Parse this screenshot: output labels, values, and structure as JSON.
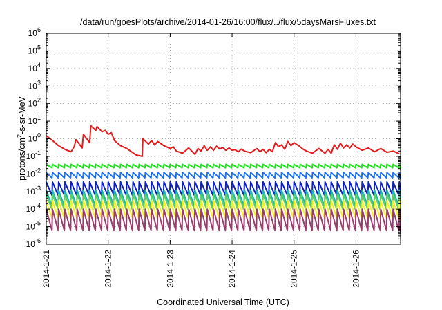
{
  "chart_data": {
    "type": "line",
    "title": "/data/run/goesPlots/archive/2014-01-26/16:00/flux/../flux/5daysMarsFluxes.txt",
    "xlabel": "Coordinated Universal Time (UTC)",
    "ylabel_parts": {
      "base": "protons/cm",
      "sup": "2",
      "rest": "-s-sr-MeV"
    },
    "yscale": "log",
    "ylim": [
      1e-06,
      1000000.0
    ],
    "xlim": [
      0,
      5.72
    ],
    "grid": true,
    "legend": "none",
    "x_tick_values": [
      0,
      1,
      2,
      3,
      4,
      5
    ],
    "x_tick_labels": [
      "2014-1-21",
      "2014-1-22",
      "2014-1-23",
      "2014-1-24",
      "2014-1-25",
      "2014-1-26"
    ],
    "y_ticks": [
      {
        "exp": -6,
        "base": "10",
        "sup": "-6"
      },
      {
        "exp": -5,
        "base": "10",
        "sup": "-5"
      },
      {
        "exp": -4,
        "base": "10",
        "sup": "-4"
      },
      {
        "exp": -3,
        "base": "10",
        "sup": "-3"
      },
      {
        "exp": -2,
        "base": "10",
        "sup": "-2"
      },
      {
        "exp": -1,
        "base": "10",
        "sup": "-1"
      },
      {
        "exp": 0,
        "base": "10",
        "sup": "0"
      },
      {
        "exp": 1,
        "base": "10",
        "sup": "1"
      },
      {
        "exp": 2,
        "base": "10",
        "sup": "2"
      },
      {
        "exp": 3,
        "base": "10",
        "sup": "3"
      },
      {
        "exp": 4,
        "base": "10",
        "sup": "4"
      },
      {
        "exp": 5,
        "base": "10",
        "sup": "5"
      },
      {
        "exp": 6,
        "base": "10",
        "sup": "6"
      }
    ],
    "series": [
      {
        "color": "#e41a1c",
        "x": [
          0,
          0.1,
          0.2,
          0.3,
          0.4,
          0.45,
          0.48,
          0.58,
          0.6,
          0.7,
          0.72,
          0.8,
          0.82,
          0.9,
          0.95,
          1.0,
          1.05,
          1.1,
          1.2,
          1.3,
          1.45,
          1.55,
          1.56,
          1.65,
          1.7,
          1.75,
          1.8,
          1.9,
          2.0,
          2.05,
          2.1,
          2.2,
          2.3,
          2.4,
          2.45,
          2.5,
          2.55,
          2.6,
          2.65,
          2.7,
          2.75,
          2.8,
          2.85,
          2.9,
          2.95,
          3.0,
          3.05,
          3.1,
          3.15,
          3.2,
          3.3,
          3.4,
          3.45,
          3.5,
          3.55,
          3.6,
          3.65,
          3.7,
          3.75,
          3.8,
          3.85,
          3.9,
          3.95,
          4.0,
          4.1,
          4.15,
          4.2,
          4.3,
          4.4,
          4.5,
          4.55,
          4.6,
          4.65,
          4.7,
          4.75,
          4.8,
          4.85,
          4.9,
          4.95,
          5.0,
          5.1,
          5.2,
          5.3,
          5.4,
          5.5,
          5.6,
          5.7
        ],
        "y": [
          1.5,
          0.8,
          0.4,
          0.25,
          0.18,
          0.35,
          0.9,
          0.3,
          1.8,
          0.6,
          5.5,
          3.0,
          5.0,
          2.5,
          3.0,
          1.8,
          2.2,
          0.8,
          0.4,
          0.28,
          0.12,
          0.1,
          1.0,
          0.5,
          0.8,
          0.45,
          0.7,
          0.4,
          0.28,
          0.35,
          0.2,
          0.15,
          0.3,
          0.13,
          0.28,
          0.2,
          0.4,
          0.22,
          0.35,
          0.22,
          0.38,
          0.26,
          0.32,
          0.22,
          0.3,
          0.22,
          0.24,
          0.18,
          0.26,
          0.2,
          0.16,
          0.28,
          0.18,
          0.25,
          0.16,
          0.25,
          0.18,
          0.6,
          0.35,
          0.45,
          0.25,
          0.7,
          0.4,
          0.6,
          0.35,
          0.25,
          0.2,
          0.15,
          0.28,
          0.15,
          0.25,
          0.15,
          0.45,
          0.25,
          0.55,
          0.3,
          0.45,
          0.3,
          0.5,
          0.35,
          0.22,
          0.3,
          0.18,
          0.28,
          0.17,
          0.2,
          0.14
        ]
      },
      {
        "color": "#1fe01f",
        "period": 0.1,
        "high": 0.035,
        "low": 0.022,
        "end_low": 0.018
      },
      {
        "color": "#1870f0",
        "period": 0.1,
        "high": 0.012,
        "low": 0.006,
        "end_low": 0.005
      },
      {
        "color": "#0a1fc8",
        "period": 0.1,
        "high": 0.0035,
        "low": 0.0006,
        "end_low": 0.0005
      },
      {
        "color": "#16b8b0",
        "period": 0.1,
        "high": 0.0012,
        "low": 0.00015,
        "end_low": 0.00012
      },
      {
        "color": "#5cd05c",
        "period": 0.1,
        "high": 0.0007,
        "low": 9e-05,
        "end_low": 8e-05
      },
      {
        "color": "#f7f01e",
        "period": 0.1,
        "high": 0.0003,
        "low": 3e-05,
        "end_low": 2.5e-05
      },
      {
        "color": "#9b3b6e",
        "period": 0.1,
        "high": 0.0001,
        "low": 6e-06,
        "end_low": 5e-06
      }
    ]
  }
}
